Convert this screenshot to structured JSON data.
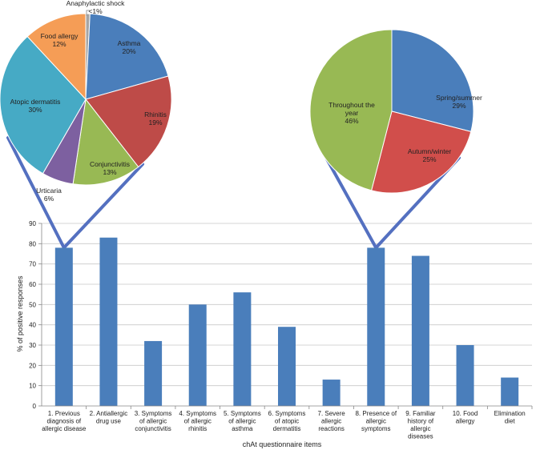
{
  "chart_data": [
    {
      "type": "bar",
      "title": "",
      "xlabel": "chAt questionnaire items",
      "ylabel": "% of positive responses",
      "ylim": [
        0,
        90
      ],
      "yticks": [
        0,
        10,
        20,
        30,
        40,
        50,
        60,
        70,
        80,
        90
      ],
      "grid": true,
      "color": "#4A7EBB",
      "categories": [
        [
          "1. Previous",
          "diagnosis of",
          "allergic disease"
        ],
        [
          "2. Antiallergic",
          "drug use"
        ],
        [
          "3. Symptoms",
          "of allergic",
          "conjunctivitis"
        ],
        [
          "4. Symptoms",
          "of allergic",
          "rhinitis"
        ],
        [
          "5. Symptoms",
          "of allergic",
          "asthma"
        ],
        [
          "6. Symptoms",
          "of atopic",
          "dermatitis"
        ],
        [
          "7. Severe",
          "allergic",
          "reactions"
        ],
        [
          "8. Presence of",
          "allergic",
          "symptoms"
        ],
        [
          "9. Familiar",
          "history of",
          "allergic",
          "diseases"
        ],
        [
          "10. Food",
          "allergy"
        ],
        [
          "Elimination",
          "diet"
        ]
      ],
      "values": [
        78,
        83,
        32,
        50,
        56,
        39,
        13,
        78,
        74,
        30,
        14
      ]
    },
    {
      "type": "pie",
      "title": "Previous diagnosis of allergic disease",
      "slices": [
        {
          "label": "Anaphylactic shock",
          "pct_label": "<1%",
          "value": 0.8,
          "color": "#A5A5A5"
        },
        {
          "label": "Asthma",
          "pct_label": "20%",
          "value": 20,
          "color": "#4A7EBB"
        },
        {
          "label": "Rhinitis",
          "pct_label": "19%",
          "value": 19,
          "color": "#BE4B48"
        },
        {
          "label": "Conjunctivitis",
          "pct_label": "13%",
          "value": 13,
          "color": "#98B954"
        },
        {
          "label": "Urticaria",
          "pct_label": "6%",
          "value": 6,
          "color": "#7D60A0"
        },
        {
          "label": "Atopic dermatitis",
          "pct_label": "30%",
          "value": 30,
          "color": "#46AAC5"
        },
        {
          "label": "Food allergy",
          "pct_label": "12%",
          "value": 12,
          "color": "#F59D56"
        }
      ]
    },
    {
      "type": "pie",
      "title": "Presence of allergic symptoms",
      "slices": [
        {
          "label": "Spring/summer",
          "pct_label": "29%",
          "value": 29,
          "color": "#4A7EBB"
        },
        {
          "label": "Autumn/winter",
          "pct_label": "25%",
          "value": 25,
          "color": "#D14E4B"
        },
        {
          "label": "Throughout the year",
          "pct_label": "46%",
          "value": 46,
          "color": "#98B954"
        }
      ]
    }
  ]
}
